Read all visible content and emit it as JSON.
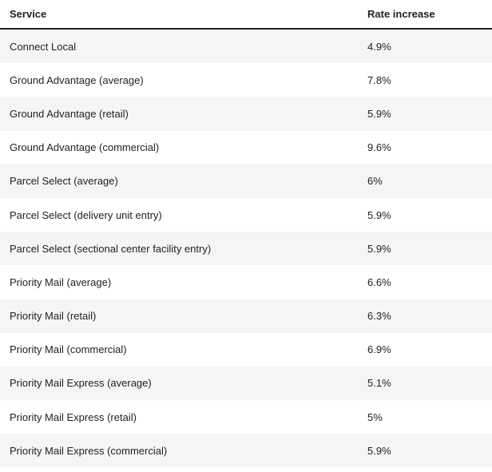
{
  "table": {
    "columns": [
      "Service",
      "Rate increase"
    ],
    "rows": [
      [
        "Connect Local",
        "4.9%"
      ],
      [
        "Ground Advantage (average)",
        "7.8%"
      ],
      [
        "Ground Advantage (retail)",
        "5.9%"
      ],
      [
        "Ground Advantage (commercial)",
        "9.6%"
      ],
      [
        "Parcel Select (average)",
        "6%"
      ],
      [
        "Parcel Select (delivery unit entry)",
        "5.9%"
      ],
      [
        "Parcel Select (sectional center facility entry)",
        "5.9%"
      ],
      [
        "Priority Mail (average)",
        "6.6%"
      ],
      [
        "Priority Mail (retail)",
        "6.3%"
      ],
      [
        "Priority Mail (commercial)",
        "6.9%"
      ],
      [
        "Priority Mail Express (average)",
        "5.1%"
      ],
      [
        "Priority Mail Express (retail)",
        "5%"
      ],
      [
        "Priority Mail Express (commercial)",
        "5.9%"
      ]
    ]
  }
}
